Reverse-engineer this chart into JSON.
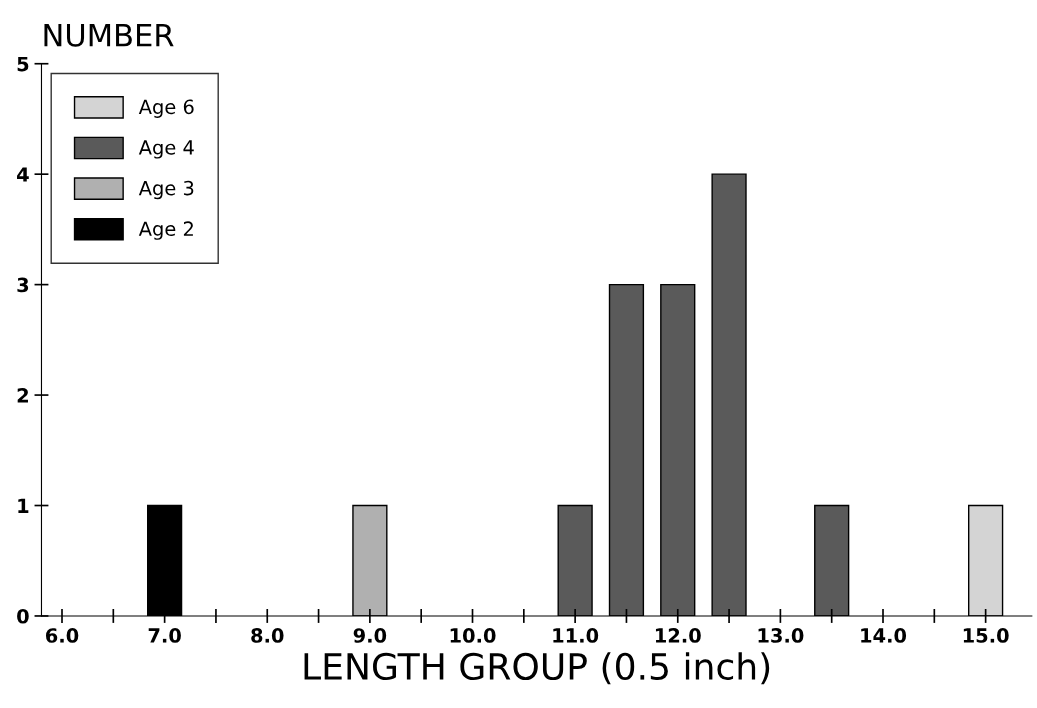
{
  "chart_data": {
    "type": "bar",
    "xlabel": "LENGTH GROUP (0.5 inch)",
    "ylabel": "NUMBER",
    "series": [
      {
        "name": "Age 6",
        "color": "#d4d4d4",
        "x": [
          15.0
        ],
        "values": [
          1
        ]
      },
      {
        "name": "Age 4",
        "color": "#5a5a5a",
        "x": [
          11.0,
          11.5,
          12.0,
          12.5,
          13.5
        ],
        "values": [
          1,
          3,
          3,
          4,
          1
        ]
      },
      {
        "name": "Age 3",
        "color": "#b0b0b0",
        "x": [
          9.0
        ],
        "values": [
          1
        ]
      },
      {
        "name": "Age 2",
        "color": "#000000",
        "x": [
          7.0
        ],
        "values": [
          1
        ]
      }
    ],
    "xlim": [
      5.8,
      15.45
    ],
    "ylim": [
      0,
      5
    ],
    "xticks": [
      {
        "value": 6.0,
        "label": "6.0"
      },
      {
        "value": 6.5,
        "label": null
      },
      {
        "value": 7.0,
        "label": "7.0"
      },
      {
        "value": 7.5,
        "label": null
      },
      {
        "value": 8.0,
        "label": "8.0"
      },
      {
        "value": 8.5,
        "label": null
      },
      {
        "value": 9.0,
        "label": "9.0"
      },
      {
        "value": 9.5,
        "label": null
      },
      {
        "value": 10.0,
        "label": "10.0"
      },
      {
        "value": 10.5,
        "label": null
      },
      {
        "value": 11.0,
        "label": "11.0"
      },
      {
        "value": 11.5,
        "label": null
      },
      {
        "value": 12.0,
        "label": "12.0"
      },
      {
        "value": 12.5,
        "label": null
      },
      {
        "value": 13.0,
        "label": "13.0"
      },
      {
        "value": 13.5,
        "label": null
      },
      {
        "value": 14.0,
        "label": "14.0"
      },
      {
        "value": 14.5,
        "label": null
      },
      {
        "value": 15.0,
        "label": "15.0"
      }
    ],
    "yticks": [
      0,
      1,
      2,
      3,
      4,
      5
    ],
    "grid": false,
    "legend": "top left"
  }
}
